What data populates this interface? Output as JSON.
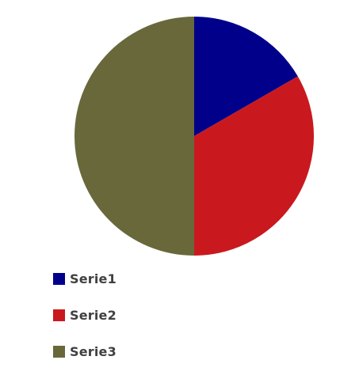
{
  "chart_data": {
    "type": "pie",
    "categories": [
      "Serie1",
      "Serie2",
      "Serie3"
    ],
    "values": [
      1,
      2,
      3
    ],
    "colors": [
      "#00008B",
      "#C9191E",
      "#68683A"
    ],
    "legend": "bottom-left",
    "start_angle": "top",
    "direction": "clockwise"
  }
}
